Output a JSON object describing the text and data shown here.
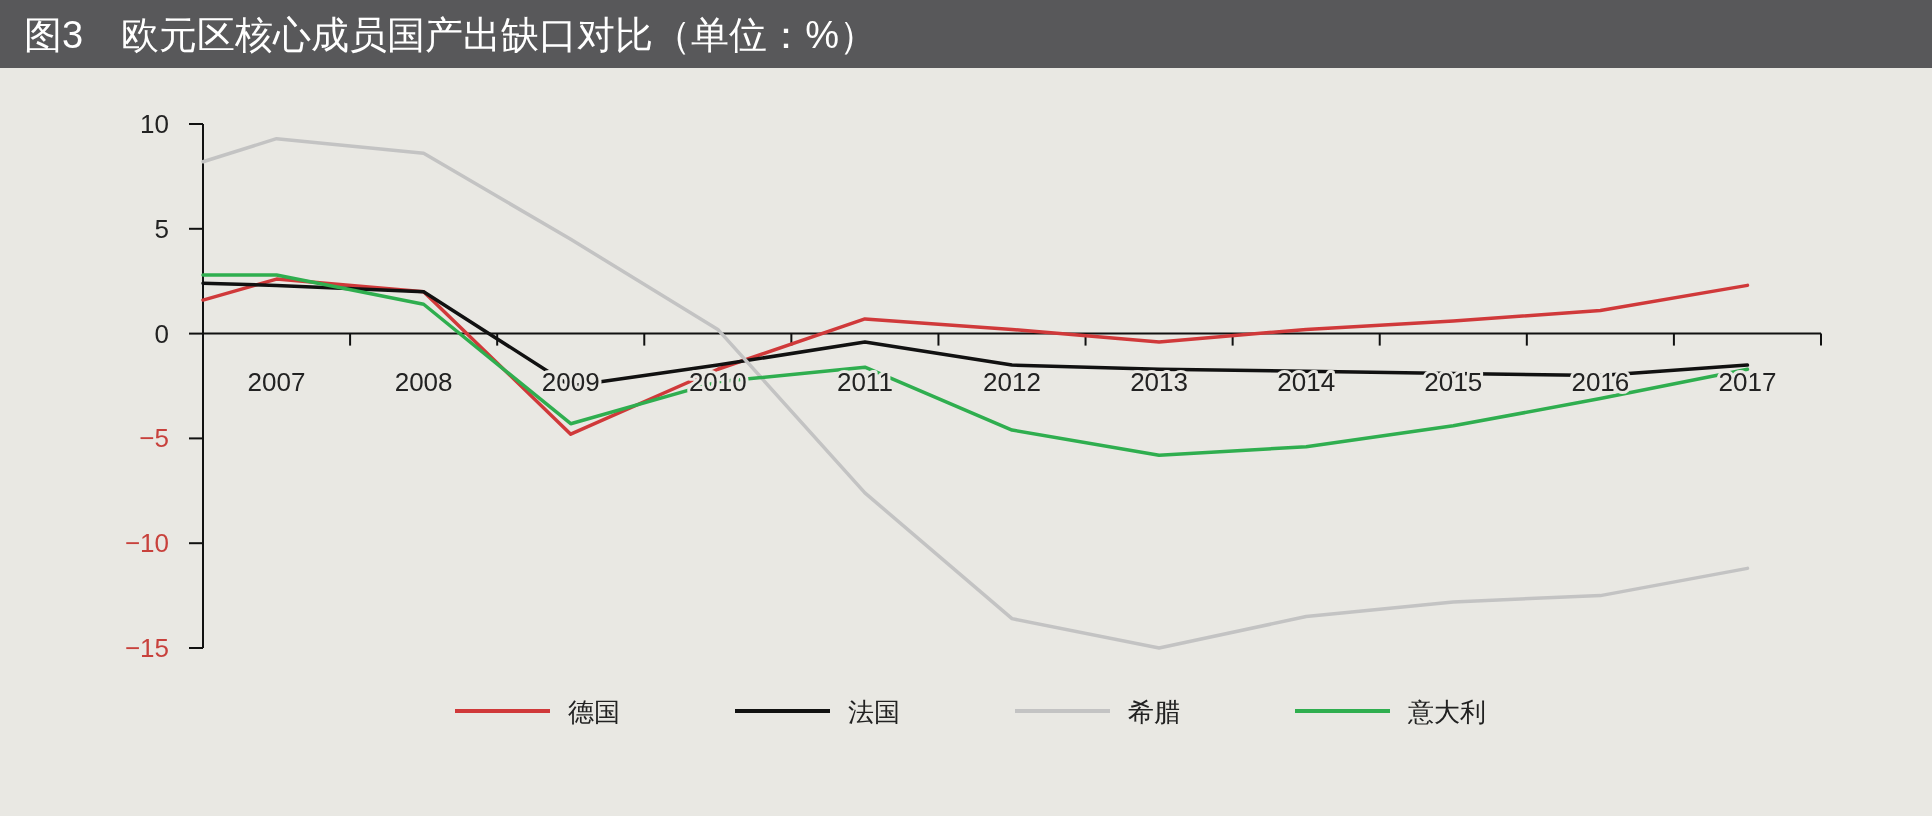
{
  "chart_data": {
    "type": "line",
    "title": "图3　欧元区核心成员国产出缺口对比（单位：%）",
    "x": [
      2006.5,
      2007,
      2008,
      2009,
      2010,
      2011,
      2012,
      2013,
      2014,
      2015,
      2016,
      2017
    ],
    "series": [
      {
        "name": "德国",
        "color": "#d0393a",
        "values": [
          1.6,
          2.6,
          2.0,
          -4.8,
          -1.7,
          0.7,
          0.2,
          -0.4,
          0.2,
          0.6,
          1.1,
          2.3
        ]
      },
      {
        "name": "法国",
        "color": "#111111",
        "values": [
          2.4,
          2.3,
          2.0,
          -2.5,
          -1.5,
          -0.4,
          -1.5,
          -1.7,
          -1.8,
          -1.9,
          -2.0,
          -1.5
        ]
      },
      {
        "name": "希腊",
        "color": "#c3c3c3",
        "values": [
          8.2,
          9.3,
          8.6,
          4.5,
          0.2,
          -7.6,
          -13.6,
          -15.0,
          -13.5,
          -12.8,
          -12.5,
          -11.2
        ]
      },
      {
        "name": "意大利",
        "color": "#2fae4f",
        "values": [
          2.8,
          2.8,
          1.4,
          -4.3,
          -2.3,
          -1.6,
          -4.6,
          -5.8,
          -5.4,
          -4.4,
          -3.1,
          -1.7
        ]
      }
    ],
    "xlim": [
      2006.5,
      2017.5
    ],
    "xticks": [
      {
        "value": 2007,
        "label": "2007"
      },
      {
        "value": 2008,
        "label": "2008"
      },
      {
        "value": 2009,
        "label": "2009"
      },
      {
        "value": 2010,
        "label": "2010"
      },
      {
        "value": 2011,
        "label": "2011"
      },
      {
        "value": 2012,
        "label": "2012"
      },
      {
        "value": 2013,
        "label": "2013"
      },
      {
        "value": 2014,
        "label": "2014"
      },
      {
        "value": 2015,
        "label": "2015"
      },
      {
        "value": 2016,
        "label": "2016"
      },
      {
        "value": 2017,
        "label": "2017"
      },
      {
        "value": 2007.5,
        "label": null
      },
      {
        "value": 2008.5,
        "label": null
      },
      {
        "value": 2009.5,
        "label": null
      },
      {
        "value": 2010.5,
        "label": null
      },
      {
        "value": 2011.5,
        "label": null
      },
      {
        "value": 2012.5,
        "label": null
      },
      {
        "value": 2013.5,
        "label": null
      },
      {
        "value": 2014.5,
        "label": null
      },
      {
        "value": 2015.5,
        "label": null
      },
      {
        "value": 2016.5,
        "label": null
      },
      {
        "value": 2017.5,
        "label": null
      }
    ],
    "ylim": [
      -15,
      10
    ],
    "yticks": [
      -15,
      -10,
      -5,
      0,
      5,
      10
    ],
    "grid": false,
    "legend": "bottom",
    "marker": "none",
    "line_style": "solid"
  }
}
